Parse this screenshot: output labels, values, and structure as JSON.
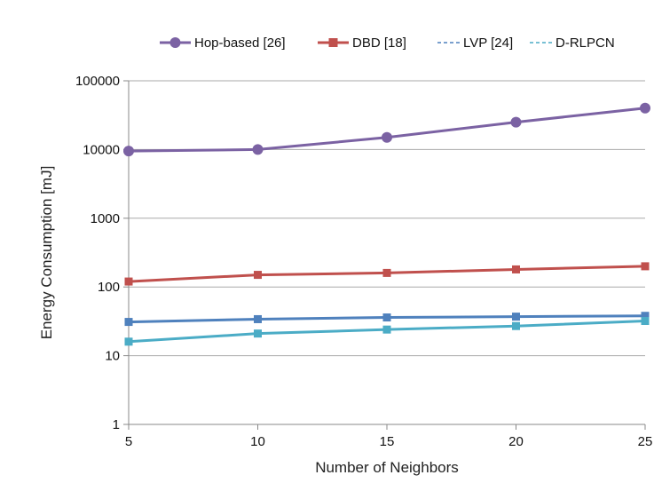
{
  "chart_data": {
    "type": "line",
    "title": "",
    "xlabel": "Number of Neighbors",
    "ylabel": "Energy Consumption [mJ]",
    "yscale": "log",
    "ylim": [
      1,
      100000
    ],
    "xlim": [
      5,
      25
    ],
    "x": [
      5,
      10,
      15,
      20,
      25
    ],
    "x_ticks": [
      "5",
      "10",
      "15",
      "20",
      "25"
    ],
    "y_ticks": [
      "1",
      "10",
      "100",
      "1000",
      "10000",
      "100000"
    ],
    "grid": "horizontal",
    "legend_position": "top",
    "series": [
      {
        "name": "Hop-based [26]",
        "values": [
          9500,
          10000,
          15000,
          25000,
          40000
        ],
        "color": "#7B62A3",
        "marker": "circle",
        "dash": "solid"
      },
      {
        "name": "DBD [18]",
        "values": [
          120,
          150,
          160,
          180,
          200
        ],
        "color": "#C0504D",
        "marker": "square",
        "dash": "solid"
      },
      {
        "name": "LVP [24]",
        "values": [
          31,
          34,
          36,
          37,
          38
        ],
        "color": "#4F81BD",
        "marker": "square",
        "dash": "dashed"
      },
      {
        "name": "D-RLPCN",
        "values": [
          16,
          21,
          24,
          27,
          32
        ],
        "color": "#4BACC6",
        "marker": "square",
        "dash": "dashed"
      }
    ]
  }
}
